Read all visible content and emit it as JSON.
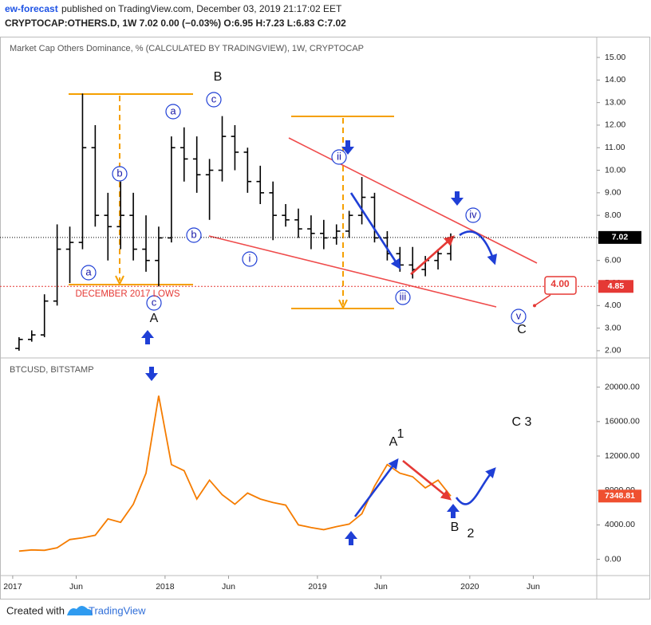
{
  "header": {
    "author": "ew-forecast",
    "published": "published on TradingView.com, December 03, 2019 21:17:02 EET",
    "symbol_line": "CRYPTOCAP:OTHERS.D, 1W  7.02  0.00 (−0.03%)  O:6.95  H:7.23  L:6.83  C:7.02"
  },
  "chart_data": [
    {
      "type": "ohlc",
      "title": "Market Cap Others Dominance, % (CALCULATED BY TRADINGVIEW), 1W, CRYPTOCAP",
      "color": "#000000",
      "x": [
        "2017-01",
        "2017-02",
        "2017-03",
        "2017-04",
        "2017-05",
        "2017-06",
        "2017-07",
        "2017-08",
        "2017-09",
        "2017-10",
        "2017-11",
        "2017-12",
        "2018-01",
        "2018-02",
        "2018-03",
        "2018-04",
        "2018-05",
        "2018-06",
        "2018-07",
        "2018-08",
        "2018-09",
        "2018-10",
        "2018-11",
        "2018-12",
        "2019-01",
        "2019-02",
        "2019-03",
        "2019-04",
        "2019-05",
        "2019-06",
        "2019-07",
        "2019-08",
        "2019-09",
        "2019-10",
        "2019-11"
      ],
      "open": [
        2.1,
        2.5,
        2.7,
        4.2,
        6.5,
        6.8,
        11.0,
        8.0,
        7.5,
        8.0,
        6.5,
        6.0,
        7.0,
        11.0,
        10.5,
        9.8,
        10.0,
        11.5,
        10.8,
        9.5,
        9.0,
        8.0,
        7.8,
        7.4,
        7.2,
        7.0,
        7.3,
        8.0,
        8.8,
        7.0,
        6.3,
        5.8,
        5.6,
        6.0,
        6.3
      ],
      "high": [
        2.6,
        2.9,
        4.5,
        7.6,
        7.5,
        13.4,
        12.0,
        9.0,
        9.5,
        9.0,
        8.0,
        7.5,
        11.5,
        11.9,
        11.5,
        10.5,
        12.4,
        12.0,
        11.0,
        10.2,
        9.5,
        8.5,
        8.3,
        8.0,
        7.8,
        7.6,
        8.2,
        9.7,
        9.0,
        7.3,
        6.6,
        6.6,
        6.2,
        6.5,
        7.2
      ],
      "low": [
        2.0,
        2.4,
        2.6,
        4.0,
        5.0,
        6.5,
        7.5,
        6.0,
        6.5,
        6.0,
        5.5,
        4.85,
        6.8,
        9.5,
        9.0,
        7.8,
        9.5,
        10.0,
        9.0,
        8.5,
        6.9,
        7.5,
        7.0,
        6.5,
        6.5,
        6.7,
        7.0,
        7.6,
        6.8,
        6.0,
        5.5,
        5.2,
        5.3,
        5.6,
        6.0
      ],
      "close": [
        2.5,
        2.7,
        4.2,
        6.5,
        6.8,
        11.0,
        8.0,
        7.5,
        8.0,
        6.5,
        6.0,
        7.0,
        11.0,
        10.5,
        9.8,
        10.0,
        11.5,
        10.8,
        9.5,
        9.0,
        8.0,
        7.8,
        7.4,
        7.2,
        7.0,
        7.3,
        8.0,
        8.8,
        7.0,
        6.3,
        5.8,
        5.6,
        6.0,
        6.3,
        7.02
      ],
      "xlim": [
        "2016-12",
        "2020-11"
      ],
      "ylim": [
        1.82,
        15.25
      ],
      "yticks": [
        {
          "value": 2,
          "label": "2.00"
        },
        {
          "value": 3,
          "label": "3.00"
        },
        {
          "value": 4,
          "label": "4.00"
        },
        {
          "value": 5,
          "label": "5.00"
        },
        {
          "value": 6,
          "label": "6.00"
        },
        {
          "value": 7,
          "label": "7.00"
        },
        {
          "value": 8,
          "label": "8.00"
        },
        {
          "value": 9,
          "label": "9.00"
        },
        {
          "value": 10,
          "label": "10.00"
        },
        {
          "value": 11,
          "label": "11.00"
        },
        {
          "value": 12,
          "label": "12.00"
        },
        {
          "value": 13,
          "label": "13.00"
        },
        {
          "value": 14,
          "label": "14.00"
        },
        {
          "value": 15,
          "label": "15.00"
        }
      ],
      "last_value": 7.02,
      "reference_line": {
        "value": 4.85,
        "color": "#e53935"
      },
      "target": {
        "value": 4,
        "label": "4.00"
      },
      "annotations": [
        "B",
        "A",
        "C",
        "a",
        "c",
        "b",
        "a",
        "b",
        "c",
        "i",
        "ii",
        "iii",
        "iv",
        "v",
        "DECEMBER 2017 LOWS"
      ]
    },
    {
      "type": "line",
      "title": "BTCUSD, BITSTAMP",
      "color": "#f57c00",
      "x": [
        "2017-01",
        "2017-02",
        "2017-03",
        "2017-04",
        "2017-05",
        "2017-06",
        "2017-07",
        "2017-08",
        "2017-09",
        "2017-10",
        "2017-11",
        "2017-12",
        "2018-01",
        "2018-02",
        "2018-03",
        "2018-04",
        "2018-05",
        "2018-06",
        "2018-07",
        "2018-08",
        "2018-09",
        "2018-10",
        "2018-11",
        "2018-12",
        "2019-01",
        "2019-02",
        "2019-03",
        "2019-04",
        "2019-05",
        "2019-06",
        "2019-07",
        "2019-08",
        "2019-09",
        "2019-10",
        "2019-11"
      ],
      "values": [
        960,
        1100,
        1050,
        1350,
        2300,
        2500,
        2800,
        4700,
        4300,
        6400,
        10000,
        19000,
        11000,
        10300,
        7000,
        9200,
        7500,
        6400,
        7700,
        7000,
        6600,
        6300,
        4000,
        3700,
        3450,
        3800,
        4100,
        5300,
        8500,
        11000,
        10000,
        9600,
        8300,
        9200,
        7348.81
      ],
      "xlim": [
        "2016-12",
        "2020-11"
      ],
      "ylim": [
        -1700,
        23300
      ],
      "yticks": [
        {
          "value": 0,
          "label": "0.00"
        },
        {
          "value": 4000,
          "label": "4000.00"
        },
        {
          "value": 8000,
          "label": "8000.00"
        },
        {
          "value": 12000,
          "label": "12000.00"
        },
        {
          "value": 16000,
          "label": "16000.00"
        },
        {
          "value": 20000,
          "label": "20000.00"
        }
      ],
      "xticks": [
        {
          "value": "2017-01",
          "label": "2017"
        },
        {
          "value": "2017-06",
          "label": "Jun"
        },
        {
          "value": "2018-01",
          "label": "2018"
        },
        {
          "value": "2018-06",
          "label": "Jun"
        },
        {
          "value": "2019-01",
          "label": "2019"
        },
        {
          "value": "2019-06",
          "label": "Jun"
        },
        {
          "value": "2020-01",
          "label": "2020"
        },
        {
          "value": "2020-06",
          "label": "Jun"
        }
      ],
      "last_value": 7348.81,
      "annotations": [
        "A",
        "1",
        "B",
        "2",
        "C 3"
      ]
    }
  ],
  "footer": {
    "created": "Created with",
    "brand": "TradingView"
  }
}
